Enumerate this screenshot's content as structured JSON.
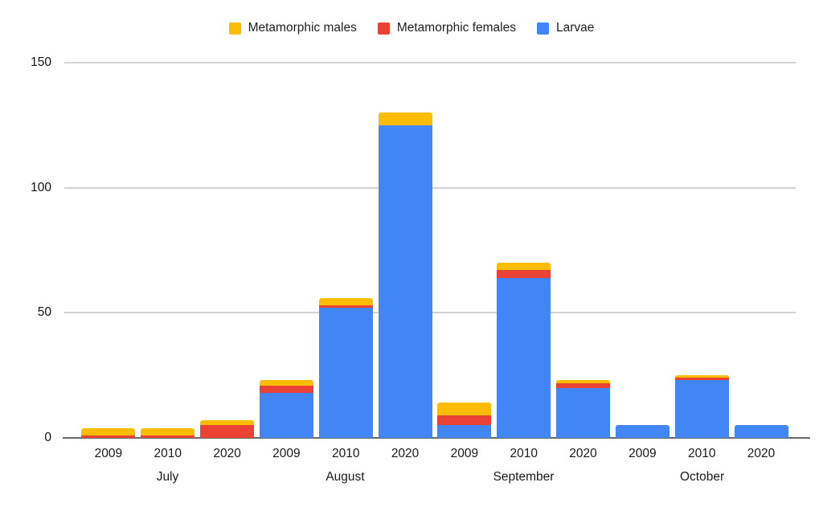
{
  "chart": {
    "background": "#ffffff",
    "axis_line_color": "#696969",
    "gridline_color": "#d2d2d2",
    "text_color": "#1a1a1a",
    "legend": {
      "items": [
        {
          "label": "Metamorphic males",
          "color": "#FBBC04"
        },
        {
          "label": "Metamorphic females",
          "color": "#EA4335"
        },
        {
          "label": "Larvae",
          "color": "#4285F4"
        }
      ]
    }
  },
  "chart_data": {
    "type": "bar",
    "stacked": true,
    "title": "",
    "xlabel": "",
    "ylabel": "",
    "ylim": [
      0,
      150
    ],
    "y_ticks": [
      0,
      50,
      100,
      150
    ],
    "grid": true,
    "legend_position": "top",
    "groups": [
      {
        "label": "July",
        "categories": [
          "2009",
          "2010",
          "2020"
        ]
      },
      {
        "label": "August",
        "categories": [
          "2009",
          "2010",
          "2020"
        ]
      },
      {
        "label": "September",
        "categories": [
          "2009",
          "2010",
          "2020"
        ]
      },
      {
        "label": "October",
        "categories": [
          "2009",
          "2010",
          "2020"
        ]
      }
    ],
    "categories": [
      "2009",
      "2010",
      "2020",
      "2009",
      "2010",
      "2020",
      "2009",
      "2010",
      "2020",
      "2009",
      "2010",
      "2020"
    ],
    "series": [
      {
        "name": "Larvae",
        "color": "#4285F4",
        "stack_order": 0,
        "values": [
          0,
          0,
          0,
          18,
          52,
          125,
          5,
          64,
          20,
          5,
          23,
          5
        ]
      },
      {
        "name": "Metamorphic females",
        "color": "#EA4335",
        "stack_order": 1,
        "values": [
          1,
          1,
          5,
          3,
          1,
          0,
          4,
          3,
          2,
          0,
          1,
          0
        ]
      },
      {
        "name": "Metamorphic males",
        "color": "#FBBC04",
        "stack_order": 2,
        "values": [
          3,
          3,
          2,
          2,
          3,
          5,
          5,
          3,
          1,
          0,
          1,
          0
        ]
      }
    ],
    "bar_totals": [
      4,
      4,
      7,
      23,
      56,
      130,
      14,
      70,
      23,
      5,
      25,
      5
    ]
  }
}
